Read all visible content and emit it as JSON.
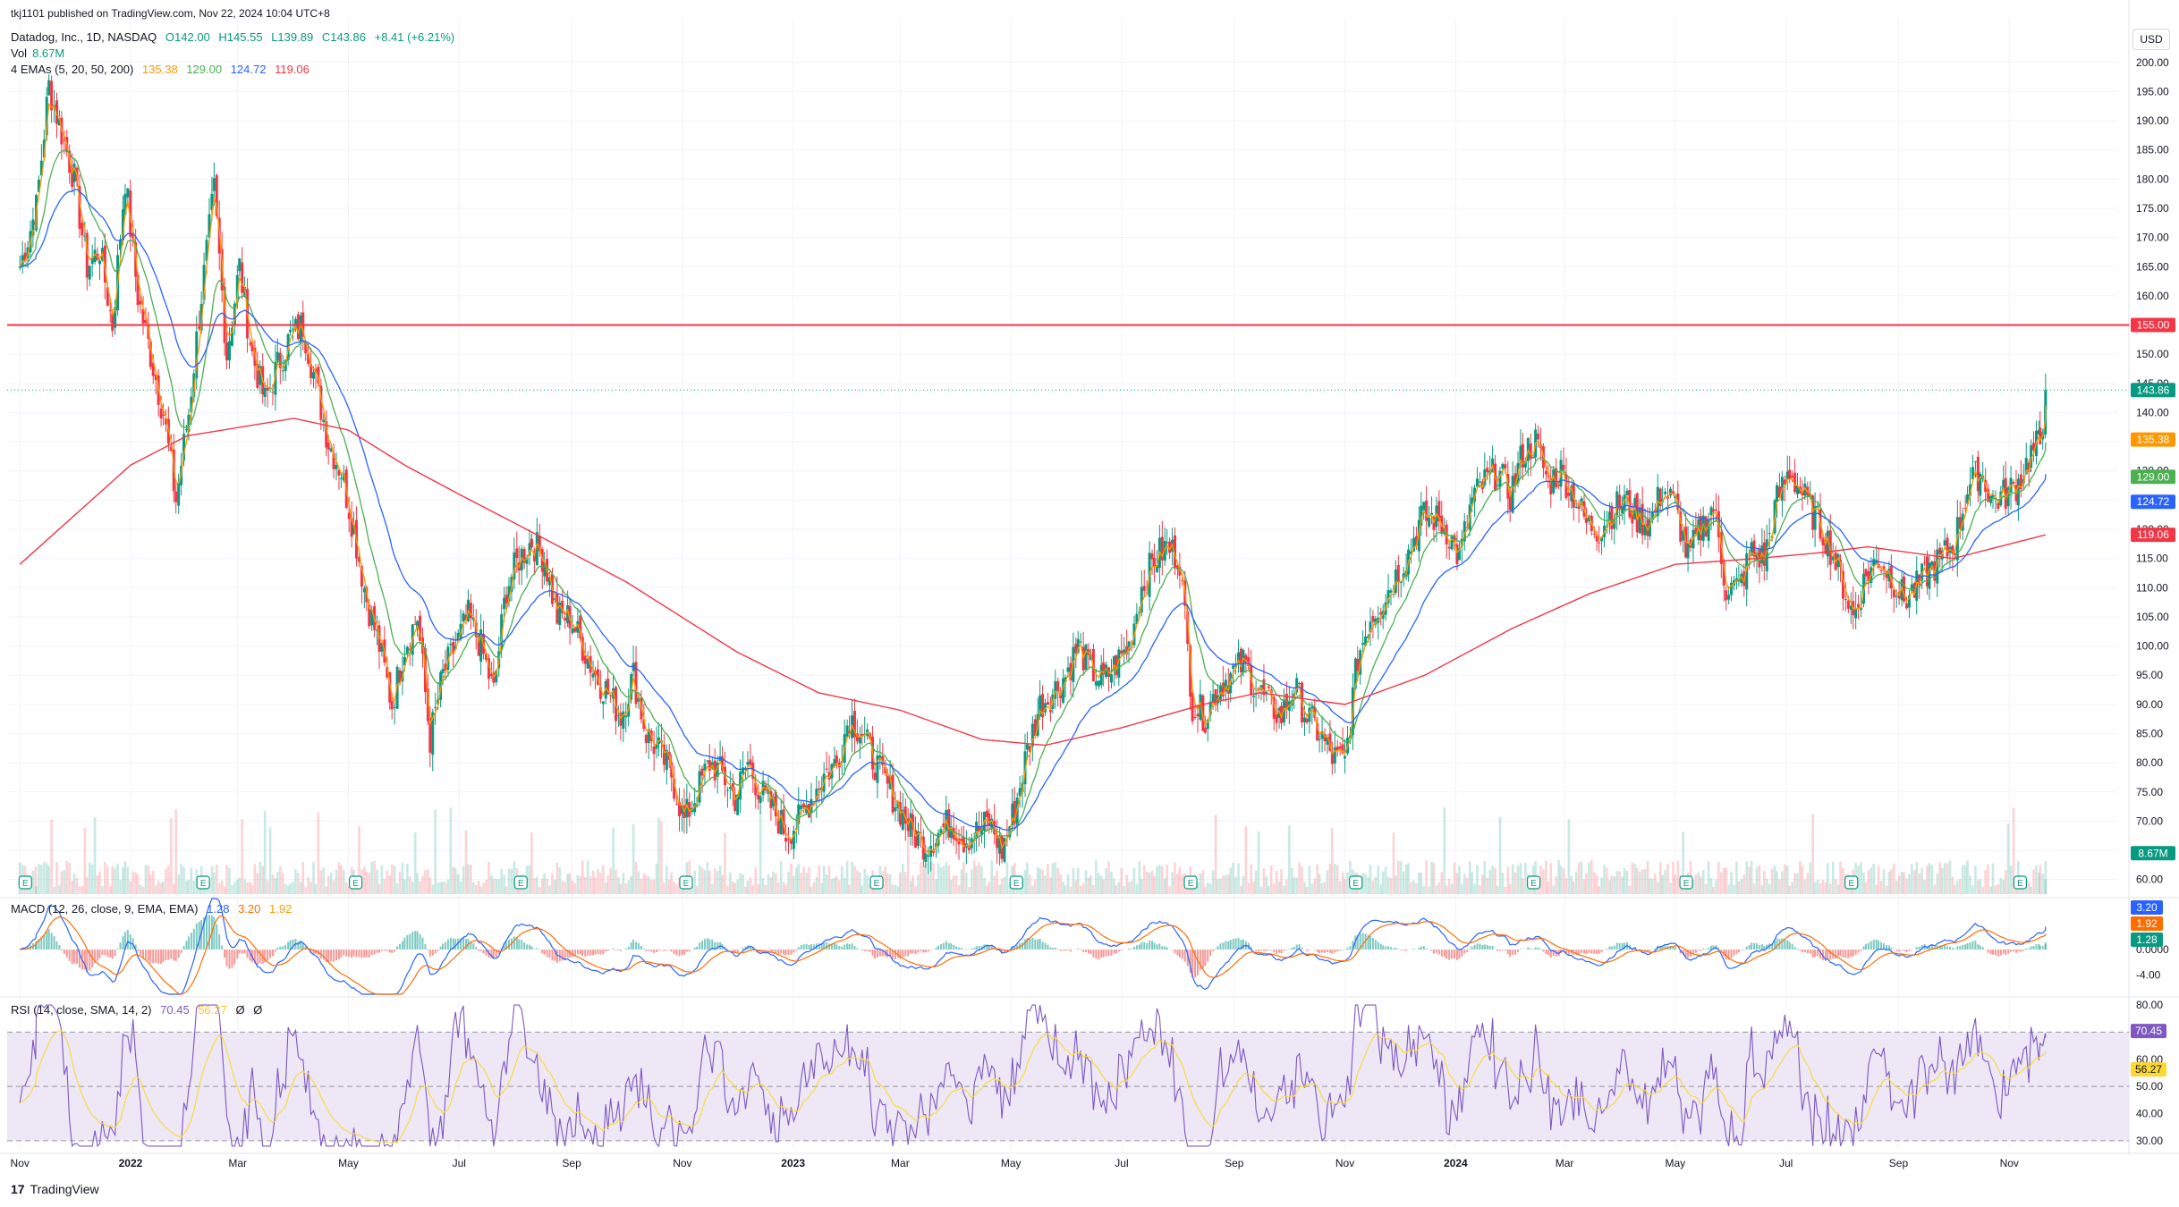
{
  "header": {
    "published": "tkj1101 published on TradingView.com, Nov 22, 2024 10:04 UTC+8",
    "symbol": "Datadog, Inc., 1D, NASDAQ",
    "ohlc": {
      "o": "O142.00",
      "h": "H145.55",
      "l": "L139.89",
      "c": "C143.86",
      "chg": "+8.41 (+6.21%)"
    },
    "vol_label": "Vol",
    "vol_value": "8.67M",
    "ema_label": "4 EMAs (5, 20, 50, 200)",
    "ema_values": [
      "135.38",
      "129.00",
      "124.72",
      "119.06"
    ]
  },
  "currency_button": "USD",
  "macd_header": {
    "label": "MACD (12, 26, close, 9, EMA, EMA)",
    "values": [
      "1.28",
      "3.20",
      "1.92"
    ]
  },
  "rsi_header": {
    "label": "RSI (14, close, SMA, 14, 2)",
    "values": [
      "70.45",
      "56.27",
      "Ø",
      "Ø"
    ]
  },
  "footer": {
    "logo": "17",
    "brand": "TradingView"
  },
  "colors": {
    "up": "#089981",
    "down": "#f23645",
    "ema5": "#ff9800",
    "ema20": "#4caf50",
    "ema50": "#2962ff",
    "ema200": "#f23645",
    "hline": "#f23645",
    "macd": "#2962ff",
    "signal": "#ff6d00",
    "rsi": "#7e57c2",
    "rsi_ma": "#fdd835",
    "rsi_band": "#ede7f6"
  },
  "chart_data": {
    "type": "candlestick",
    "timeframe": "1D",
    "price_axis": {
      "ticks": [
        "200.00",
        "195.00",
        "190.00",
        "185.00",
        "180.00",
        "175.00",
        "170.00",
        "165.00",
        "160.00",
        "155.00",
        "150.00",
        "145.00",
        "140.00",
        "135.00",
        "130.00",
        "125.00",
        "120.00",
        "115.00",
        "110.00",
        "105.00",
        "100.00",
        "95.00",
        "90.00",
        "85.00",
        "80.00",
        "75.00",
        "70.00",
        "65.00",
        "60.00"
      ],
      "range": [
        57.5,
        201.5
      ]
    },
    "x_labels": [
      "Nov",
      "2022",
      "Mar",
      "May",
      "Jul",
      "Sep",
      "Nov",
      "2023",
      "Mar",
      "May",
      "Jul",
      "Sep",
      "Nov",
      "2024",
      "Mar",
      "May",
      "Jul",
      "Sep",
      "Nov"
    ],
    "price_path": [
      [
        "2021-11-01",
        165
      ],
      [
        "2021-11-10",
        175
      ],
      [
        "2021-11-17",
        196
      ],
      [
        "2021-11-24",
        188
      ],
      [
        "2021-12-01",
        180
      ],
      [
        "2021-12-08",
        165
      ],
      [
        "2021-12-15",
        168
      ],
      [
        "2021-12-22",
        155
      ],
      [
        "2021-12-29",
        180
      ],
      [
        "2022-01-05",
        160
      ],
      [
        "2022-01-12",
        150
      ],
      [
        "2022-01-19",
        140
      ],
      [
        "2022-01-26",
        125
      ],
      [
        "2022-02-02",
        140
      ],
      [
        "2022-02-09",
        160
      ],
      [
        "2022-02-16",
        178
      ],
      [
        "2022-02-23",
        150
      ],
      [
        "2022-03-02",
        165
      ],
      [
        "2022-03-09",
        150
      ],
      [
        "2022-03-16",
        142
      ],
      [
        "2022-03-23",
        148
      ],
      [
        "2022-03-30",
        153
      ],
      [
        "2022-04-06",
        155
      ],
      [
        "2022-04-13",
        145
      ],
      [
        "2022-04-20",
        135
      ],
      [
        "2022-04-27",
        130
      ],
      [
        "2022-05-04",
        120
      ],
      [
        "2022-05-11",
        108
      ],
      [
        "2022-05-18",
        100
      ],
      [
        "2022-05-25",
        90
      ],
      [
        "2022-06-01",
        100
      ],
      [
        "2022-06-08",
        105
      ],
      [
        "2022-06-15",
        84
      ],
      [
        "2022-06-22",
        95
      ],
      [
        "2022-06-29",
        100
      ],
      [
        "2022-07-06",
        105
      ],
      [
        "2022-07-13",
        100
      ],
      [
        "2022-07-20",
        92
      ],
      [
        "2022-07-27",
        110
      ],
      [
        "2022-08-03",
        115
      ],
      [
        "2022-08-10",
        118
      ],
      [
        "2022-08-17",
        115
      ],
      [
        "2022-08-24",
        105
      ],
      [
        "2022-08-31",
        105
      ],
      [
        "2022-09-07",
        100
      ],
      [
        "2022-09-14",
        95
      ],
      [
        "2022-09-21",
        92
      ],
      [
        "2022-09-28",
        88
      ],
      [
        "2022-10-05",
        95
      ],
      [
        "2022-10-12",
        85
      ],
      [
        "2022-10-19",
        82
      ],
      [
        "2022-10-26",
        78
      ],
      [
        "2022-11-02",
        70
      ],
      [
        "2022-11-09",
        75
      ],
      [
        "2022-11-16",
        80
      ],
      [
        "2022-11-23",
        78
      ],
      [
        "2022-11-30",
        74
      ],
      [
        "2022-12-07",
        80
      ],
      [
        "2022-12-14",
        75
      ],
      [
        "2022-12-21",
        72
      ],
      [
        "2022-12-28",
        68
      ],
      [
        "2023-01-04",
        70
      ],
      [
        "2023-01-11",
        74
      ],
      [
        "2023-01-18",
        78
      ],
      [
        "2023-01-25",
        80
      ],
      [
        "2023-02-01",
        88
      ],
      [
        "2023-02-08",
        85
      ],
      [
        "2023-02-15",
        80
      ],
      [
        "2023-02-22",
        76
      ],
      [
        "2023-03-01",
        72
      ],
      [
        "2023-03-08",
        68
      ],
      [
        "2023-03-15",
        66
      ],
      [
        "2023-03-22",
        68
      ],
      [
        "2023-03-29",
        70
      ],
      [
        "2023-04-05",
        67
      ],
      [
        "2023-04-12",
        68
      ],
      [
        "2023-04-19",
        70
      ],
      [
        "2023-04-26",
        65
      ],
      [
        "2023-05-03",
        72
      ],
      [
        "2023-05-10",
        82
      ],
      [
        "2023-05-17",
        90
      ],
      [
        "2023-05-24",
        92
      ],
      [
        "2023-05-31",
        95
      ],
      [
        "2023-06-07",
        100
      ],
      [
        "2023-06-14",
        96
      ],
      [
        "2023-06-21",
        94
      ],
      [
        "2023-06-28",
        97
      ],
      [
        "2023-07-05",
        100
      ],
      [
        "2023-07-12",
        110
      ],
      [
        "2023-07-19",
        115
      ],
      [
        "2023-07-26",
        117
      ],
      [
        "2023-08-02",
        115
      ],
      [
        "2023-08-09",
        90
      ],
      [
        "2023-08-16",
        88
      ],
      [
        "2023-08-23",
        93
      ],
      [
        "2023-08-30",
        95
      ],
      [
        "2023-09-06",
        97
      ],
      [
        "2023-09-13",
        93
      ],
      [
        "2023-09-20",
        90
      ],
      [
        "2023-09-27",
        88
      ],
      [
        "2023-10-04",
        93
      ],
      [
        "2023-10-11",
        88
      ],
      [
        "2023-10-18",
        85
      ],
      [
        "2023-10-25",
        81
      ],
      [
        "2023-11-01",
        80
      ],
      [
        "2023-11-08",
        98
      ],
      [
        "2023-11-15",
        105
      ],
      [
        "2023-11-22",
        108
      ],
      [
        "2023-11-29",
        112
      ],
      [
        "2023-12-06",
        116
      ],
      [
        "2023-12-13",
        122
      ],
      [
        "2023-12-20",
        122
      ],
      [
        "2023-12-27",
        120
      ],
      [
        "2024-01-03",
        115
      ],
      [
        "2024-01-10",
        125
      ],
      [
        "2024-01-17",
        128
      ],
      [
        "2024-01-24",
        130
      ],
      [
        "2024-01-31",
        126
      ],
      [
        "2024-02-07",
        133
      ],
      [
        "2024-02-14",
        135
      ],
      [
        "2024-02-21",
        128
      ],
      [
        "2024-02-28",
        130
      ],
      [
        "2024-03-06",
        126
      ],
      [
        "2024-03-13",
        121
      ],
      [
        "2024-03-20",
        120
      ],
      [
        "2024-03-27",
        123
      ],
      [
        "2024-04-03",
        125
      ],
      [
        "2024-04-10",
        122
      ],
      [
        "2024-04-17",
        121
      ],
      [
        "2024-04-24",
        127
      ],
      [
        "2024-05-01",
        124
      ],
      [
        "2024-05-08",
        115
      ],
      [
        "2024-05-15",
        120
      ],
      [
        "2024-05-22",
        124
      ],
      [
        "2024-05-29",
        110
      ],
      [
        "2024-06-05",
        110
      ],
      [
        "2024-06-12",
        116
      ],
      [
        "2024-06-19",
        115
      ],
      [
        "2024-06-26",
        125
      ],
      [
        "2024-07-03",
        130
      ],
      [
        "2024-07-10",
        126
      ],
      [
        "2024-07-17",
        122
      ],
      [
        "2024-07-24",
        118
      ],
      [
        "2024-07-31",
        112
      ],
      [
        "2024-08-07",
        105
      ],
      [
        "2024-08-14",
        112
      ],
      [
        "2024-08-21",
        115
      ],
      [
        "2024-08-28",
        112
      ],
      [
        "2024-09-04",
        108
      ],
      [
        "2024-09-11",
        110
      ],
      [
        "2024-09-18",
        113
      ],
      [
        "2024-09-25",
        115
      ],
      [
        "2024-10-02",
        118
      ],
      [
        "2024-10-09",
        127
      ],
      [
        "2024-10-16",
        130
      ],
      [
        "2024-10-23",
        125
      ],
      [
        "2024-10-30",
        126
      ],
      [
        "2024-11-06",
        128
      ],
      [
        "2024-11-13",
        133
      ],
      [
        "2024-11-18",
        135
      ],
      [
        "2024-11-21",
        143.86
      ]
    ],
    "ema200_path": [
      [
        "2021-11-01",
        114
      ],
      [
        "2022-01-01",
        131
      ],
      [
        "2022-02-01",
        136
      ],
      [
        "2022-04-01",
        139
      ],
      [
        "2022-05-01",
        137
      ],
      [
        "2022-06-01",
        131
      ],
      [
        "2022-07-01",
        126
      ],
      [
        "2022-08-01",
        121
      ],
      [
        "2022-10-01",
        111
      ],
      [
        "2022-12-01",
        99
      ],
      [
        "2023-01-15",
        92
      ],
      [
        "2023-03-01",
        89
      ],
      [
        "2023-04-15",
        84
      ],
      [
        "2023-05-20",
        83
      ],
      [
        "2023-07-01",
        86
      ],
      [
        "2023-08-15",
        90
      ],
      [
        "2023-09-15",
        92
      ],
      [
        "2023-11-01",
        90
      ],
      [
        "2023-12-15",
        95
      ],
      [
        "2024-02-01",
        103
      ],
      [
        "2024-03-15",
        109
      ],
      [
        "2024-05-01",
        114
      ],
      [
        "2024-06-15",
        115
      ],
      [
        "2024-07-20",
        116
      ],
      [
        "2024-08-15",
        117
      ],
      [
        "2024-10-01",
        115
      ],
      [
        "2024-11-21",
        119.06
      ]
    ],
    "horizontal_lines": [
      {
        "price": 155.0,
        "label": "155.00"
      }
    ],
    "last_labels": [
      {
        "price": 155.0,
        "text": "155.00",
        "color": "#f23645"
      },
      {
        "price": 143.86,
        "text": "143.86",
        "color": "#089981"
      },
      {
        "price": 135.38,
        "text": "135.38",
        "color": "#ff9800"
      },
      {
        "price": 129.0,
        "text": "129.00",
        "color": "#4caf50"
      },
      {
        "price": 124.72,
        "text": "124.72",
        "color": "#2962ff"
      },
      {
        "price": 119.06,
        "text": "119.06",
        "color": "#f23645"
      },
      {
        "price": 64.5,
        "text": "8.67M",
        "color": "#089981"
      }
    ],
    "earnings_markers": [
      "2021-11-04",
      "2022-02-10",
      "2022-05-05",
      "2022-08-04",
      "2022-11-03",
      "2023-02-16",
      "2023-05-04",
      "2023-08-08",
      "2023-11-07",
      "2024-02-13",
      "2024-05-07",
      "2024-08-06",
      "2024-11-07"
    ],
    "macd_axis": {
      "ticks": [
        "0.0000",
        "-4.00"
      ],
      "range": [
        -7,
        8
      ]
    },
    "macd_labels": [
      {
        "text": "3.20",
        "color": "#2962ff"
      },
      {
        "text": "1.92",
        "color": "#ff6d00"
      },
      {
        "text": "1.28",
        "color": "#089981"
      }
    ],
    "rsi_axis": {
      "ticks": [
        "80.00",
        "70.00",
        "60.00",
        "50.00",
        "40.00",
        "30.00"
      ],
      "range": [
        27,
        82
      ]
    },
    "rsi_labels": [
      {
        "text": "70.45",
        "color": "#7e57c2"
      },
      {
        "text": "56.27",
        "color": "#fdd835"
      }
    ]
  }
}
